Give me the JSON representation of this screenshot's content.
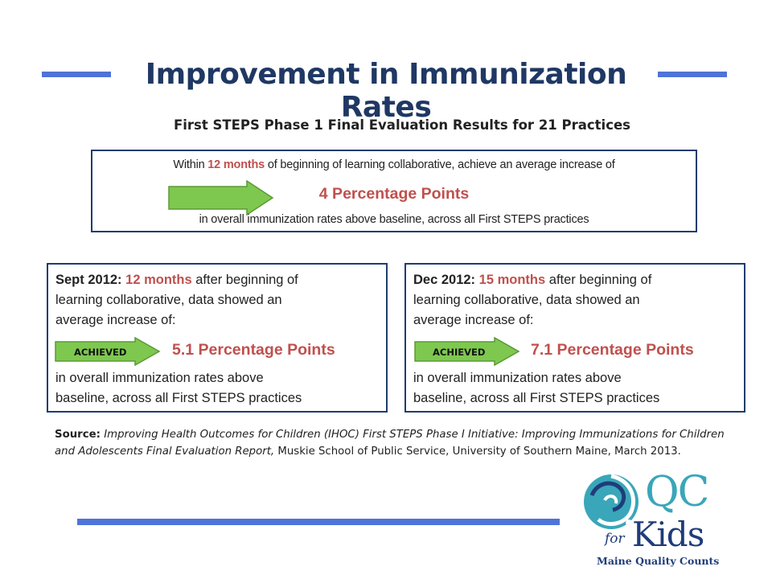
{
  "title": "Improvement in Immunization Rates",
  "subtitle": "First STEPS Phase 1 Final Evaluation Results for 21 Practices",
  "goal": {
    "line1_prefix": "Within ",
    "line1_accent": "12 months",
    "line1_suffix": " of beginning of learning collaborative, achieve an average increase of",
    "big": "4 Percentage Points",
    "line3": "in overall immunization rates above baseline, across all First STEPS practices"
  },
  "results": [
    {
      "date": "Sept 2012:",
      "accent": "12 months",
      "text1": " after beginning of",
      "text2": "learning collaborative, data showed an",
      "text3": "average increase of:",
      "badge": "ACHIEVED",
      "big": "5.1 Percentage Points",
      "text4": "in overall immunization rates above",
      "text5": "baseline, across all First STEPS practices"
    },
    {
      "date": "Dec 2012:",
      "accent": "15 months",
      "text1": " after beginning of",
      "text2": "learning collaborative, data showed an",
      "text3": "average increase of:",
      "badge": "ACHIEVED",
      "big": "7.1 Percentage Points",
      "text4": "in overall immunization rates above",
      "text5": "baseline, across all First STEPS practices"
    }
  ],
  "source": {
    "label": "Source:",
    "italic": "Improving Health Outcomes for Children (IHOC) First STEPS Phase I Initiative:  Improving Immunizations for Children and Adolescents Final Evaluation Report,",
    "rest": " Muskie School of Public Service, University of Southern Maine, March 2013."
  },
  "logo": {
    "qc": "QC",
    "for": "for",
    "kids": "Kids",
    "tagline": "Maine Quality Counts"
  },
  "colors": {
    "accent_red": "#c0504d",
    "title_navy": "#1f3864",
    "bar_blue": "#4f73d8",
    "arrow_green": "#7ec850",
    "logo_teal": "#3aa6b9",
    "logo_navy": "#1f3c7a"
  }
}
